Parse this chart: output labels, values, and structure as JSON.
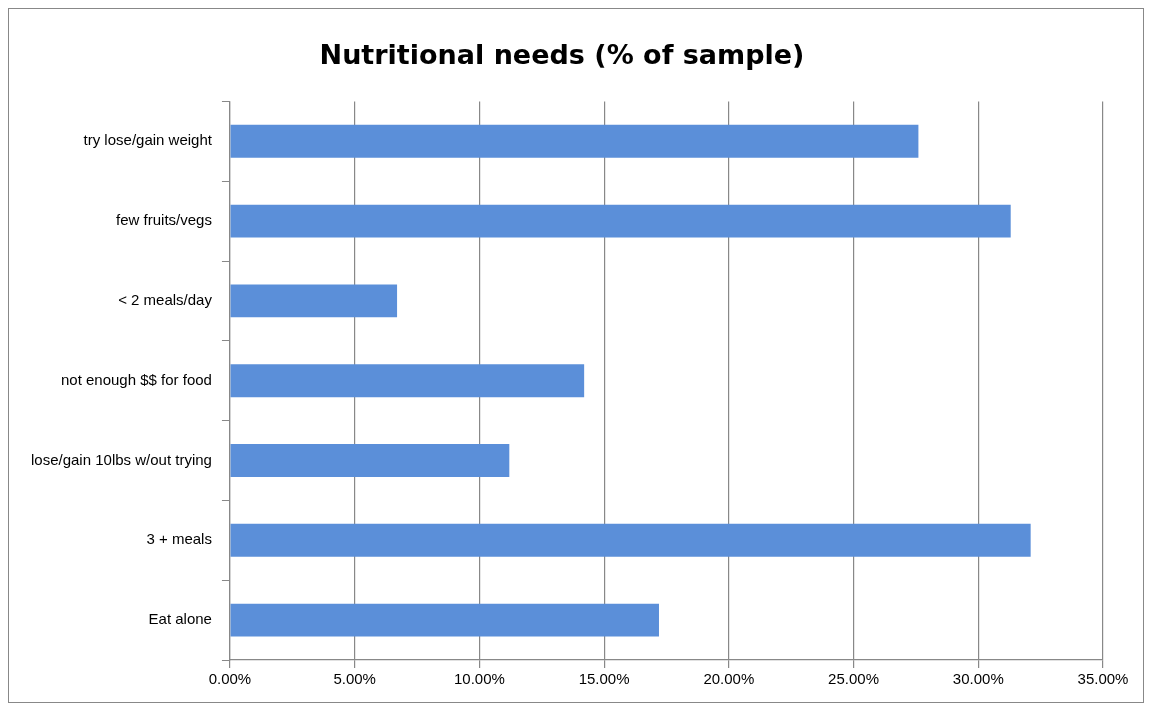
{
  "chart_data": {
    "type": "bar",
    "orientation": "horizontal",
    "title": "Nutritional needs (% of sample)",
    "categories": [
      "try lose/gain weight",
      "few fruits/vegs",
      "< 2 meals/day",
      "not enough $$ for food",
      "lose/gain 10lbs w/out trying",
      "3 + meals",
      "Eat alone"
    ],
    "values": [
      27.6,
      31.3,
      6.7,
      14.2,
      11.2,
      32.1,
      17.2
    ],
    "color": "#5b8fd9",
    "xlim": [
      0,
      35
    ],
    "xticks": [
      {
        "value": 0,
        "label": "0.00%"
      },
      {
        "value": 5,
        "label": "5.00%"
      },
      {
        "value": 10,
        "label": "10.00%"
      },
      {
        "value": 15,
        "label": "15.00%"
      },
      {
        "value": 20,
        "label": "20.00%"
      },
      {
        "value": 25,
        "label": "25.00%"
      },
      {
        "value": 30,
        "label": "30.00%"
      },
      {
        "value": 35,
        "label": "35.00%"
      }
    ],
    "grid": "x"
  }
}
